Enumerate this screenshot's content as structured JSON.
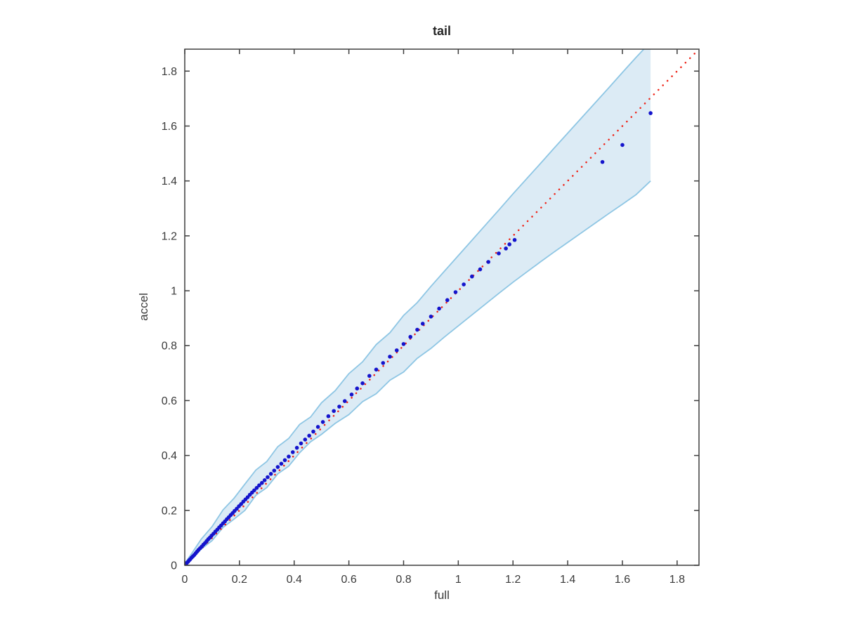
{
  "figure": {
    "title": "tail",
    "xlabel": "full",
    "ylabel": "accel"
  },
  "chart_data": {
    "type": "scatter",
    "title": "tail",
    "xlabel": "full",
    "ylabel": "accel",
    "xlim": [
      0,
      1.88
    ],
    "ylim": [
      0,
      1.88
    ],
    "grid": false,
    "legend": null,
    "xticks": [
      0,
      0.2,
      0.4,
      0.6,
      0.8,
      1.0,
      1.2,
      1.4,
      1.6,
      1.8
    ],
    "yticks": [
      0,
      0.2,
      0.4,
      0.6,
      0.8,
      1.0,
      1.2,
      1.4,
      1.6,
      1.8
    ],
    "xtick_labels": [
      "0",
      "0.2",
      "0.4",
      "0.6",
      "0.8",
      "1",
      "1.2",
      "1.4",
      "1.6",
      "1.8"
    ],
    "ytick_labels": [
      "0",
      "0.2",
      "0.4",
      "0.6",
      "0.8",
      "1",
      "1.2",
      "1.4",
      "1.6",
      "1.8"
    ],
    "identity_line": {
      "from": [
        0,
        0
      ],
      "to": [
        1.88,
        1.88
      ],
      "style": "dotted",
      "color": "#ee2418"
    },
    "confidence_band": {
      "fill": "#dcebf5",
      "edge": "#8ec6e4",
      "x": [
        0.0,
        0.03,
        0.06,
        0.1,
        0.14,
        0.18,
        0.22,
        0.26,
        0.3,
        0.34,
        0.38,
        0.42,
        0.46,
        0.5,
        0.55,
        0.6,
        0.65,
        0.7,
        0.75,
        0.8,
        0.85,
        0.9,
        0.95,
        1.0,
        1.05,
        1.1,
        1.15,
        1.2,
        1.25,
        1.3,
        1.35,
        1.4,
        1.45,
        1.5,
        1.55,
        1.6,
        1.65,
        1.703
      ],
      "lower": [
        0.0,
        0.026,
        0.059,
        0.09,
        0.138,
        0.168,
        0.2,
        0.255,
        0.283,
        0.333,
        0.361,
        0.41,
        0.45,
        0.477,
        0.517,
        0.549,
        0.596,
        0.625,
        0.674,
        0.704,
        0.754,
        0.79,
        0.832,
        0.872,
        0.912,
        0.952,
        0.992,
        1.031,
        1.068,
        1.105,
        1.141,
        1.176,
        1.211,
        1.246,
        1.281,
        1.315,
        1.35,
        1.4
      ],
      "upper": [
        0.006,
        0.05,
        0.095,
        0.141,
        0.202,
        0.244,
        0.296,
        0.347,
        0.378,
        0.432,
        0.462,
        0.513,
        0.54,
        0.592,
        0.636,
        0.698,
        0.741,
        0.804,
        0.847,
        0.91,
        0.957,
        1.016,
        1.072,
        1.128,
        1.184,
        1.24,
        1.296,
        1.353,
        1.408,
        1.463,
        1.519,
        1.574,
        1.629,
        1.684,
        1.739,
        1.795,
        1.85,
        1.906
      ]
    },
    "points_color": "#1414cc",
    "points": [
      [
        0.004,
        0.004
      ],
      [
        0.008,
        0.009
      ],
      [
        0.012,
        0.013
      ],
      [
        0.016,
        0.018
      ],
      [
        0.02,
        0.022
      ],
      [
        0.025,
        0.028
      ],
      [
        0.03,
        0.033
      ],
      [
        0.035,
        0.038
      ],
      [
        0.04,
        0.044
      ],
      [
        0.045,
        0.05
      ],
      [
        0.05,
        0.056
      ],
      [
        0.056,
        0.062
      ],
      [
        0.062,
        0.068
      ],
      [
        0.068,
        0.075
      ],
      [
        0.074,
        0.081
      ],
      [
        0.08,
        0.088
      ],
      [
        0.086,
        0.095
      ],
      [
        0.092,
        0.101
      ],
      [
        0.098,
        0.108
      ],
      [
        0.105,
        0.115
      ],
      [
        0.112,
        0.123
      ],
      [
        0.119,
        0.13
      ],
      [
        0.126,
        0.138
      ],
      [
        0.133,
        0.145
      ],
      [
        0.14,
        0.153
      ],
      [
        0.147,
        0.16
      ],
      [
        0.154,
        0.168
      ],
      [
        0.161,
        0.175
      ],
      [
        0.168,
        0.183
      ],
      [
        0.175,
        0.19
      ],
      [
        0.182,
        0.198
      ],
      [
        0.19,
        0.206
      ],
      [
        0.198,
        0.215
      ],
      [
        0.206,
        0.223
      ],
      [
        0.214,
        0.232
      ],
      [
        0.222,
        0.24
      ],
      [
        0.23,
        0.248
      ],
      [
        0.238,
        0.257
      ],
      [
        0.246,
        0.265
      ],
      [
        0.254,
        0.273
      ],
      [
        0.263,
        0.282
      ],
      [
        0.272,
        0.291
      ],
      [
        0.282,
        0.3
      ],
      [
        0.292,
        0.31
      ],
      [
        0.303,
        0.321
      ],
      [
        0.315,
        0.333
      ],
      [
        0.327,
        0.345
      ],
      [
        0.34,
        0.358
      ],
      [
        0.353,
        0.37
      ],
      [
        0.366,
        0.383
      ],
      [
        0.38,
        0.396
      ],
      [
        0.395,
        0.412
      ],
      [
        0.41,
        0.428
      ],
      [
        0.425,
        0.444
      ],
      [
        0.44,
        0.458
      ],
      [
        0.455,
        0.472
      ],
      [
        0.47,
        0.487
      ],
      [
        0.487,
        0.504
      ],
      [
        0.505,
        0.522
      ],
      [
        0.525,
        0.543
      ],
      [
        0.545,
        0.562
      ],
      [
        0.565,
        0.578
      ],
      [
        0.585,
        0.598
      ],
      [
        0.61,
        0.622
      ],
      [
        0.63,
        0.644
      ],
      [
        0.65,
        0.663
      ],
      [
        0.675,
        0.69
      ],
      [
        0.7,
        0.713
      ],
      [
        0.725,
        0.737
      ],
      [
        0.75,
        0.76
      ],
      [
        0.775,
        0.783
      ],
      [
        0.8,
        0.806
      ],
      [
        0.825,
        0.832
      ],
      [
        0.85,
        0.858
      ],
      [
        0.87,
        0.88
      ],
      [
        0.9,
        0.906
      ],
      [
        0.93,
        0.935
      ],
      [
        0.96,
        0.966
      ],
      [
        0.99,
        0.995
      ],
      [
        1.02,
        1.023
      ],
      [
        1.05,
        1.052
      ],
      [
        1.08,
        1.078
      ],
      [
        1.11,
        1.105
      ],
      [
        1.148,
        1.136
      ],
      [
        1.174,
        1.154
      ],
      [
        1.187,
        1.169
      ],
      [
        1.206,
        1.185
      ],
      [
        1.527,
        1.469
      ],
      [
        1.6,
        1.531
      ],
      [
        1.703,
        1.647
      ]
    ],
    "colors": {
      "axis": "#3d3d3d",
      "tick_label": "#3a3a3a",
      "background": "#ffffff"
    }
  }
}
